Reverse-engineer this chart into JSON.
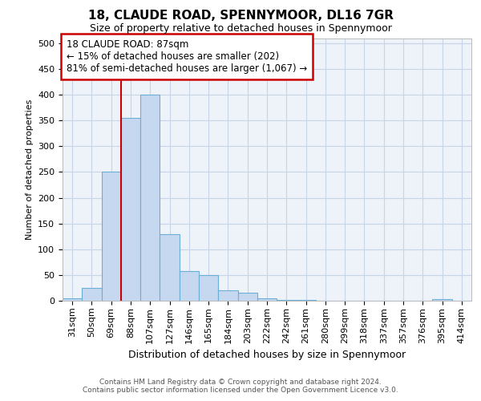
{
  "title_line1": "18, CLAUDE ROAD, SPENNYMOOR, DL16 7GR",
  "title_line2": "Size of property relative to detached houses in Spennymoor",
  "xlabel": "Distribution of detached houses by size in Spennymoor",
  "ylabel": "Number of detached properties",
  "categories": [
    "31sqm",
    "50sqm",
    "69sqm",
    "88sqm",
    "107sqm",
    "127sqm",
    "146sqm",
    "165sqm",
    "184sqm",
    "203sqm",
    "222sqm",
    "242sqm",
    "261sqm",
    "280sqm",
    "299sqm",
    "318sqm",
    "337sqm",
    "357sqm",
    "376sqm",
    "395sqm",
    "414sqm"
  ],
  "values": [
    5,
    25,
    250,
    355,
    400,
    130,
    58,
    50,
    20,
    15,
    4,
    2,
    1,
    0,
    0,
    0,
    0,
    0,
    0,
    3,
    0
  ],
  "bar_color": "#c5d8f0",
  "bar_edge_color": "#6baed6",
  "vline_x_index": 3,
  "vline_color": "#cc0000",
  "annotation_line1": "18 CLAUDE ROAD: 87sqm",
  "annotation_line2": "← 15% of detached houses are smaller (202)",
  "annotation_line3": "81% of semi-detached houses are larger (1,067) →",
  "annotation_box_facecolor": "#ffffff",
  "annotation_box_edgecolor": "#cc0000",
  "ylim": [
    0,
    510
  ],
  "yticks": [
    0,
    50,
    100,
    150,
    200,
    250,
    300,
    350,
    400,
    450,
    500
  ],
  "grid_color": "#c8d4e8",
  "plot_bg": "#eef2f9",
  "title1_fontsize": 11,
  "title2_fontsize": 9,
  "ylabel_fontsize": 8,
  "xlabel_fontsize": 9,
  "tick_fontsize": 8,
  "xtick_fontsize": 8,
  "footer_line1": "Contains HM Land Registry data © Crown copyright and database right 2024.",
  "footer_line2": "Contains public sector information licensed under the Open Government Licence v3.0."
}
